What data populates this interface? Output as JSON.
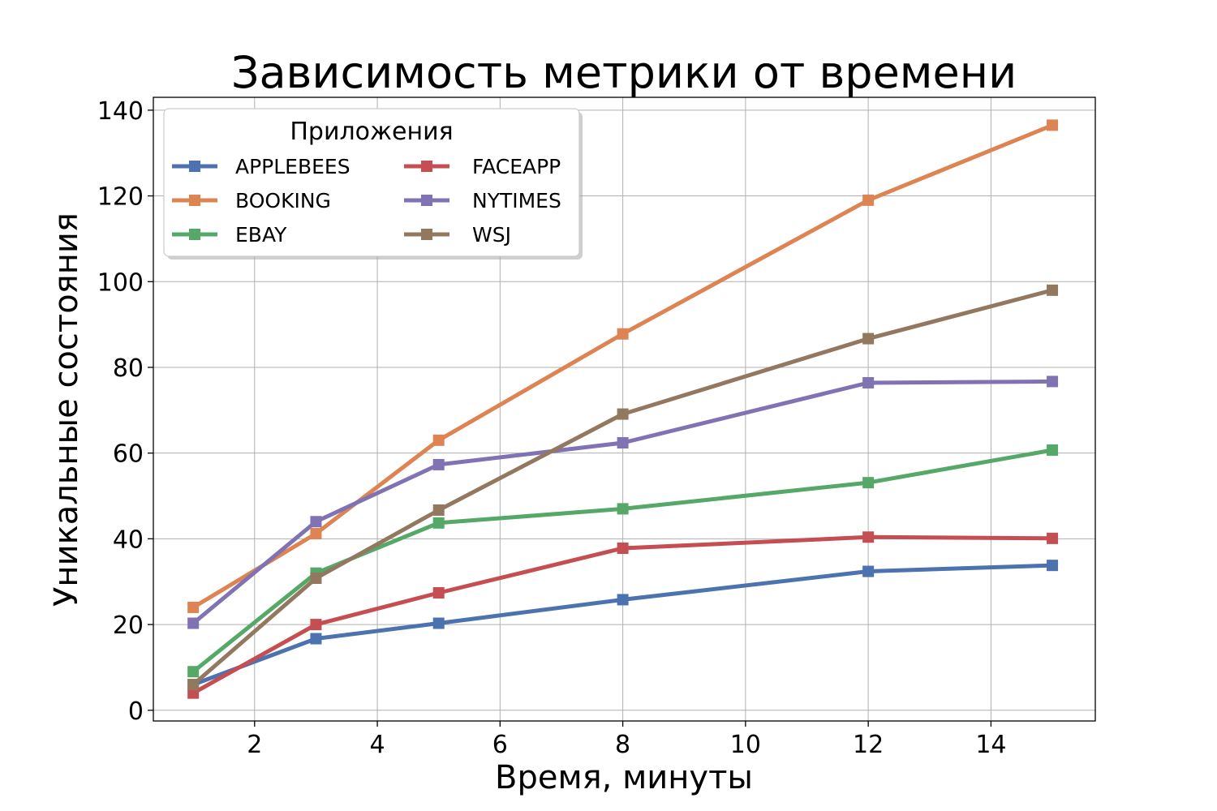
{
  "chart_data": {
    "type": "line",
    "title": "Зависимость метрики от времени",
    "xlabel": "Время, минуты",
    "ylabel": "Уникальные состояния",
    "xlim": [
      0.35,
      15.7
    ],
    "ylim": [
      -2.5,
      143
    ],
    "xticks": [
      2,
      4,
      6,
      8,
      10,
      12,
      14
    ],
    "yticks": [
      0,
      20,
      40,
      60,
      80,
      100,
      120,
      140
    ],
    "grid": true,
    "marker": "square",
    "legend": {
      "title": "Приложения",
      "placement": "top-left",
      "columns": 2
    },
    "x": [
      1,
      3,
      5,
      8,
      12,
      15
    ],
    "series": [
      {
        "name": "APPLEBEES",
        "color": "#4c72b0",
        "values": [
          6,
          16.7,
          20.3,
          25.8,
          32.4,
          33.8
        ]
      },
      {
        "name": "BOOKING",
        "color": "#dd8452",
        "values": [
          24,
          41.2,
          63,
          87.8,
          119,
          136.5
        ]
      },
      {
        "name": "EBAY",
        "color": "#55a868",
        "values": [
          9,
          32,
          43.7,
          47,
          53.1,
          60.7
        ]
      },
      {
        "name": "FACEAPP",
        "color": "#c44e52",
        "values": [
          4,
          20,
          27.4,
          37.8,
          40.4,
          40.1
        ]
      },
      {
        "name": "NYTIMES",
        "color": "#8172b3",
        "values": [
          20.3,
          44,
          57.3,
          62.4,
          76.4,
          76.7
        ]
      },
      {
        "name": "WSJ",
        "color": "#937860",
        "values": [
          6,
          30.8,
          46.7,
          69.1,
          86.7,
          98
        ]
      }
    ]
  }
}
